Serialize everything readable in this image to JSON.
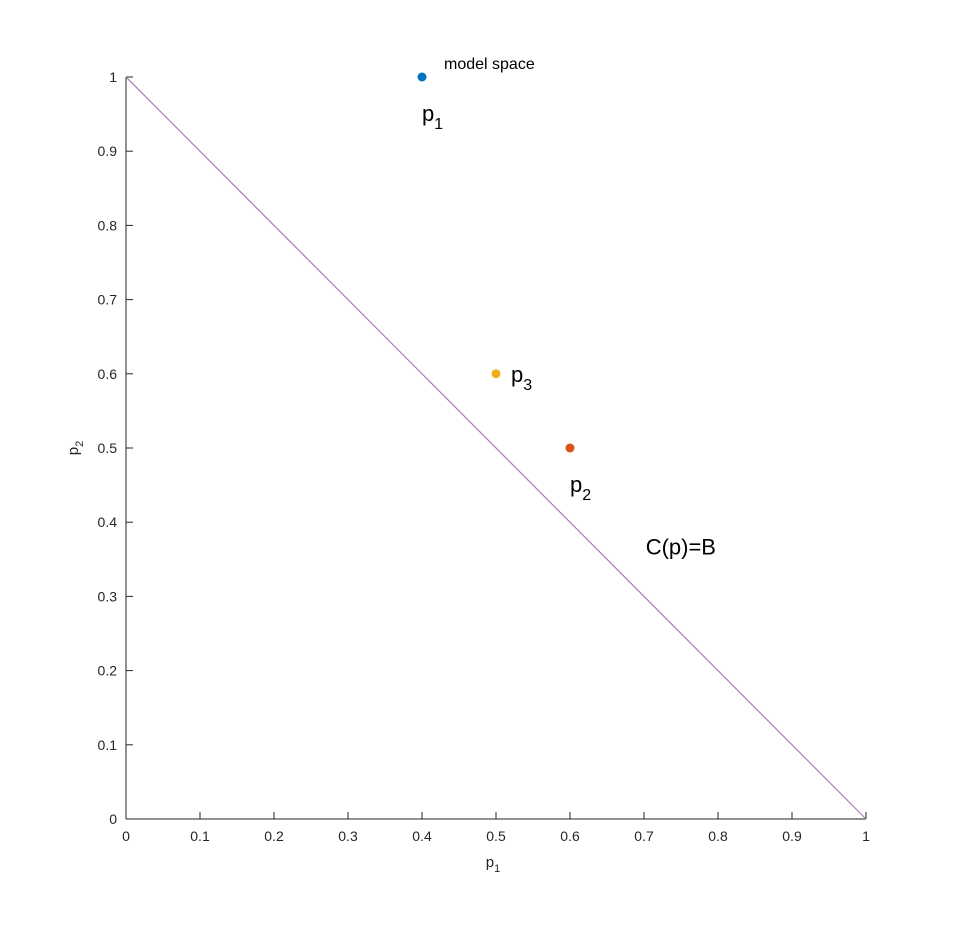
{
  "chart_data": {
    "type": "scatter",
    "title": "model space",
    "xlabel": {
      "base": "p",
      "sub": "1"
    },
    "ylabel": {
      "base": "p",
      "sub": "2"
    },
    "xlim": [
      0,
      1
    ],
    "ylim": [
      0,
      1
    ],
    "grid": false,
    "xticks": [
      0,
      0.1,
      0.2,
      0.3,
      0.4,
      0.5,
      0.6,
      0.7,
      0.8,
      0.9,
      1
    ],
    "xtick_labels": [
      "0",
      "0.1",
      "0.2",
      "0.3",
      "0.4",
      "0.5",
      "0.6",
      "0.7",
      "0.8",
      "0.9",
      "1"
    ],
    "yticks": [
      0,
      0.1,
      0.2,
      0.3,
      0.4,
      0.5,
      0.6,
      0.7,
      0.8,
      0.9,
      1
    ],
    "ytick_labels": [
      "0",
      "0.1",
      "0.2",
      "0.3",
      "0.4",
      "0.5",
      "0.6",
      "0.7",
      "0.8",
      "0.9",
      "1"
    ],
    "points": [
      {
        "id": "p1",
        "x": 0.4,
        "y": 1.0,
        "color": "#0072BD",
        "label": {
          "base": "p",
          "sub": "1"
        },
        "label_position": "below"
      },
      {
        "id": "p2",
        "x": 0.6,
        "y": 0.5,
        "color": "#D95319",
        "label": {
          "base": "p",
          "sub": "2"
        },
        "label_position": "below"
      },
      {
        "id": "p3",
        "x": 0.5,
        "y": 0.6,
        "color": "#EDB120",
        "label": {
          "base": "p",
          "sub": "3"
        },
        "label_position": "right"
      }
    ],
    "lines": [
      {
        "id": "budget-line",
        "x": [
          0,
          1
        ],
        "y": [
          1,
          0
        ],
        "color": "#A87CB8"
      }
    ],
    "annotations": [
      {
        "text": "C(p)=B",
        "x": 0.705,
        "y": 0.34
      }
    ],
    "colors": {
      "axis": "#262626",
      "background": "#ffffff"
    }
  }
}
